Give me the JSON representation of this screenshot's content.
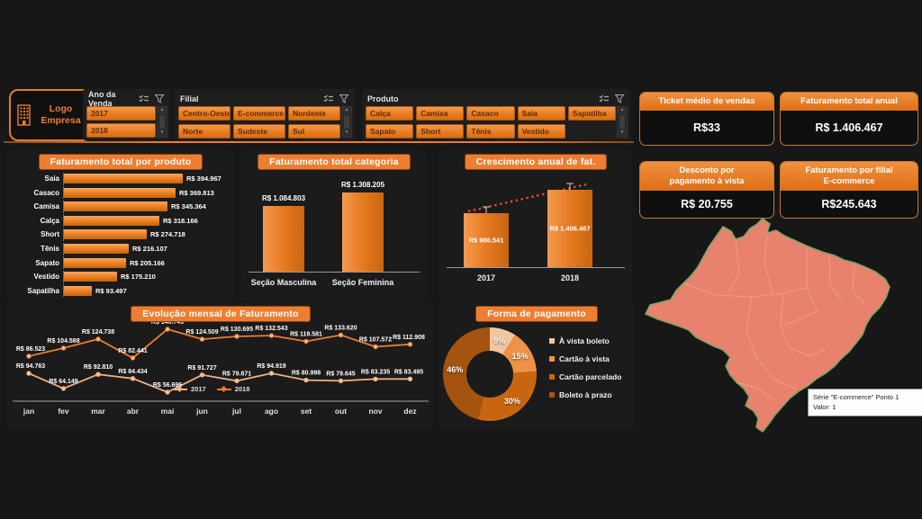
{
  "logo": {
    "line1": "Logo",
    "line2": "Empresa"
  },
  "colors": {
    "accent": "#ed7d31",
    "map_fill": "#e8826e",
    "map_outline": "#7da361",
    "trendline": "#e2492f",
    "series_2017": "#eeb183",
    "series_2018": "#ed7d31",
    "pie": [
      "#f2c7a0",
      "#ed9246",
      "#c96511",
      "#a4540f"
    ]
  },
  "slicers": {
    "ano": {
      "title": "Ano da Venda",
      "items": [
        "2017",
        "2018"
      ]
    },
    "filial": {
      "title": "Filial",
      "items": [
        "Centro-Oeste",
        "E-commerce",
        "Nordeste",
        "Norte",
        "Sudeste",
        "Sul"
      ]
    },
    "produto": {
      "title": "Produto",
      "items": [
        "Calça",
        "Camisa",
        "Casaco",
        "Saia",
        "Sapatilha",
        "Sapato",
        "Short",
        "Tênis",
        "Vestido"
      ]
    }
  },
  "kpis": [
    {
      "title": "Ticket médio de vendas",
      "value": "R$33"
    },
    {
      "title": "Faturamento total anual",
      "value": "R$ 1.406.467"
    },
    {
      "title": "Desconto por\npagamento à vista",
      "title_line1": "Desconto por",
      "title_line2": "pagamento à vista",
      "value": "R$ 20.755"
    },
    {
      "title": "Faturamento por filial\nE-commerce",
      "title_line1": "Faturamento por filial",
      "title_line2": "E-commerce",
      "value": "R$245.643"
    }
  ],
  "chart_data": [
    {
      "type": "bar",
      "orientation": "horizontal",
      "title": "Faturamento total por produto",
      "categories": [
        "Saia",
        "Casaco",
        "Camisa",
        "Calça",
        "Short",
        "Tênis",
        "Sapato",
        "Vestido",
        "Sapatilha"
      ],
      "values": [
        394967,
        369813,
        345364,
        318166,
        274718,
        216107,
        205166,
        175210,
        93497
      ],
      "value_labels": [
        "R$ 394.967",
        "R$ 369.813",
        "R$ 345.364",
        "R$ 318.166",
        "R$ 274.718",
        "R$ 216.107",
        "R$ 205.166",
        "R$ 175.210",
        "R$ 93.497"
      ],
      "xlim": [
        0,
        400000
      ],
      "grid": false,
      "legend_position": "none"
    },
    {
      "type": "bar",
      "orientation": "vertical",
      "title": "Faturamento total categoria",
      "categories": [
        "Seção Masculina",
        "Seção Feminina"
      ],
      "values": [
        1084803,
        1308205
      ],
      "value_labels": [
        "R$ 1.084.803",
        "R$ 1.308.205"
      ],
      "ylim": [
        0,
        1400000
      ],
      "grid": false,
      "legend_position": "none"
    },
    {
      "type": "bar",
      "orientation": "vertical",
      "title": "Crescimento anual de fat.",
      "categories": [
        "2017",
        "2018"
      ],
      "values": [
        986541,
        1406467
      ],
      "value_labels": [
        "R$ 986.541",
        "R$ 1.406.467"
      ],
      "trendline": true,
      "error_bars": true,
      "ylim": [
        0,
        1500000
      ],
      "grid": false,
      "legend_position": "none"
    },
    {
      "type": "line",
      "title": "Evolução mensal de Faturamento",
      "x": [
        "jan",
        "fev",
        "mar",
        "abr",
        "mai",
        "jun",
        "jul",
        "ago",
        "set",
        "out",
        "nov",
        "dez"
      ],
      "series": [
        {
          "name": "2017",
          "values": [
            94763,
            64149,
            92810,
            84434,
            56696,
            91727,
            79671,
            94919,
            80998,
            79645,
            83235,
            83495
          ],
          "labels": [
            "R$ 94.763",
            "R$ 64.149",
            "R$ 92.810",
            "R$ 84.434",
            "R$ 56.696",
            "R$ 91.727",
            "R$ 79.671",
            "R$ 94.919",
            "R$ 80.998",
            "R$ 79.645",
            "R$ 83.235",
            "R$ 83.495"
          ]
        },
        {
          "name": "2018",
          "values": [
            86523,
            104588,
            124738,
            82441,
            146749,
            124509,
            130695,
            132543,
            119581,
            133620,
            107572,
            112908
          ],
          "labels": [
            "R$ 86.523",
            "R$ 104.588",
            "R$ 124.738",
            "R$ 82.441",
            "R$ 146.749",
            "R$ 124.509",
            "R$ 130.695",
            "R$ 132.543",
            "R$ 119.581",
            "R$ 133.620",
            "R$ 107.572",
            "R$ 112.908"
          ]
        }
      ],
      "ylim": [
        0,
        160000
      ],
      "grid": false,
      "legend_position": "bottom"
    },
    {
      "type": "pie",
      "donut": true,
      "title": "Forma de pagamento",
      "labels": [
        "À vista boleto",
        "Cartão à vista",
        "Cartão parcelado",
        "Boleto à prazo"
      ],
      "values": [
        9,
        15,
        30,
        46
      ],
      "value_labels": [
        "9%",
        "15%",
        "30%",
        "46%"
      ],
      "legend_position": "right"
    }
  ],
  "map": {
    "region": "Brasil",
    "tooltip_line1": "Série \"E-commerce\" Ponto 1",
    "tooltip_line2": "Valor: 1"
  }
}
